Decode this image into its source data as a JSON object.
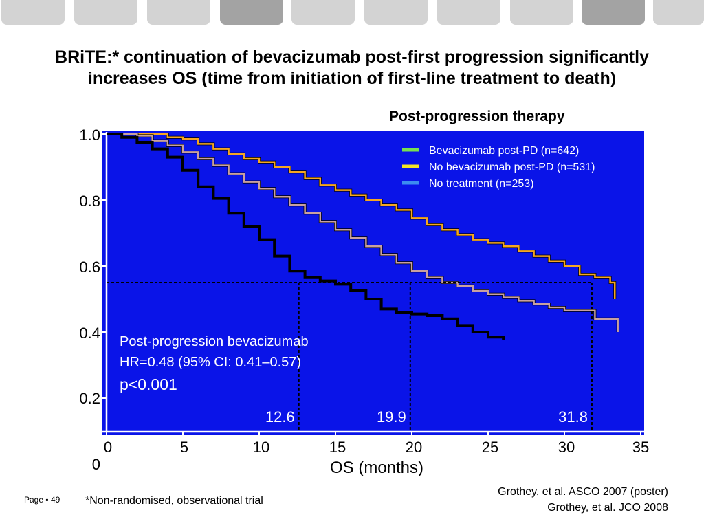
{
  "title_lines": [
    "BRiTE:* continuation of bevacizumab post-first progression significantly",
    "increases OS (time from initiation of first-line treatment to death)"
  ],
  "legend_title": "Post-progression therapy",
  "footnote": "*Non-randomised, observational trial",
  "page_label": "Page ▪ 49",
  "references": [
    "Grothey, et al. ASCO 2007 (poster)",
    "Grothey, et al. JCO 2008"
  ],
  "chart_data": {
    "type": "line",
    "xlabel": "OS (months)",
    "ylabel": "",
    "xlim": [
      0,
      35
    ],
    "ylim": [
      0,
      1.0
    ],
    "x_ticks": [
      "0",
      "5",
      "10",
      "15",
      "20",
      "25",
      "30",
      "35"
    ],
    "y_ticks": [
      "1.0",
      "0.8",
      "0.6",
      "0.4",
      "0.2",
      "0"
    ],
    "background_color": "#0a14e8",
    "legend_position": "top-right",
    "series": [
      {
        "name": "Bevacizumab post-PD (n=642)",
        "legend_color": "#78e050",
        "line_color": "#f5a623",
        "points": [
          [
            0,
            1.0
          ],
          [
            2,
            1.0
          ],
          [
            4,
            0.99
          ],
          [
            5,
            0.985
          ],
          [
            6,
            0.97
          ],
          [
            7,
            0.955
          ],
          [
            8,
            0.94
          ],
          [
            9,
            0.925
          ],
          [
            10,
            0.915
          ],
          [
            11,
            0.9
          ],
          [
            12,
            0.885
          ],
          [
            13,
            0.865
          ],
          [
            14,
            0.845
          ],
          [
            15,
            0.83
          ],
          [
            16,
            0.815
          ],
          [
            17,
            0.8
          ],
          [
            18,
            0.785
          ],
          [
            19,
            0.77
          ],
          [
            20,
            0.745
          ],
          [
            21,
            0.725
          ],
          [
            22,
            0.71
          ],
          [
            23,
            0.695
          ],
          [
            24,
            0.68
          ],
          [
            25,
            0.67
          ],
          [
            26,
            0.66
          ],
          [
            27,
            0.645
          ],
          [
            28,
            0.63
          ],
          [
            29,
            0.615
          ],
          [
            30,
            0.6
          ],
          [
            31,
            0.575
          ],
          [
            32,
            0.565
          ],
          [
            33,
            0.55
          ],
          [
            33.3,
            0.52
          ],
          [
            33.3,
            0.5
          ]
        ]
      },
      {
        "name": "No bevacizumab post-PD (n=531)",
        "legend_color": "#f5e626",
        "line_color": "#c8a0a0",
        "points": [
          [
            0,
            1.0
          ],
          [
            2,
            0.995
          ],
          [
            3,
            0.98
          ],
          [
            4,
            0.965
          ],
          [
            5,
            0.945
          ],
          [
            6,
            0.925
          ],
          [
            7,
            0.905
          ],
          [
            8,
            0.88
          ],
          [
            9,
            0.855
          ],
          [
            10,
            0.835
          ],
          [
            11,
            0.81
          ],
          [
            12,
            0.785
          ],
          [
            13,
            0.76
          ],
          [
            14,
            0.735
          ],
          [
            15,
            0.71
          ],
          [
            16,
            0.685
          ],
          [
            17,
            0.66
          ],
          [
            18,
            0.635
          ],
          [
            19,
            0.61
          ],
          [
            20,
            0.585
          ],
          [
            21,
            0.565
          ],
          [
            22,
            0.55
          ],
          [
            23,
            0.54
          ],
          [
            24,
            0.525
          ],
          [
            25,
            0.515
          ],
          [
            26,
            0.505
          ],
          [
            27,
            0.495
          ],
          [
            28,
            0.485
          ],
          [
            29,
            0.475
          ],
          [
            30,
            0.465
          ],
          [
            31,
            0.465
          ],
          [
            32,
            0.44
          ],
          [
            33.5,
            0.44
          ],
          [
            33.5,
            0.4
          ]
        ]
      },
      {
        "name": "No treatment (n=253)",
        "legend_color": "#3c8cf0",
        "line_color": "#000000",
        "points": [
          [
            0,
            1.0
          ],
          [
            1,
            0.99
          ],
          [
            2,
            0.975
          ],
          [
            3,
            0.955
          ],
          [
            4,
            0.93
          ],
          [
            5,
            0.89
          ],
          [
            6,
            0.84
          ],
          [
            7,
            0.805
          ],
          [
            8,
            0.76
          ],
          [
            9,
            0.72
          ],
          [
            10,
            0.68
          ],
          [
            11,
            0.63
          ],
          [
            12,
            0.585
          ],
          [
            13,
            0.565
          ],
          [
            14,
            0.555
          ],
          [
            15,
            0.545
          ],
          [
            16,
            0.525
          ],
          [
            17,
            0.5
          ],
          [
            18,
            0.47
          ],
          [
            19,
            0.46
          ],
          [
            20,
            0.455
          ],
          [
            21,
            0.45
          ],
          [
            22,
            0.44
          ],
          [
            23,
            0.42
          ],
          [
            24,
            0.4
          ],
          [
            25,
            0.385
          ],
          [
            26,
            0.375
          ]
        ]
      }
    ],
    "median_line_y": 0.55,
    "medians": [
      {
        "x": 12.6,
        "label": "12.6"
      },
      {
        "x": 19.9,
        "label": "19.9"
      },
      {
        "x": 31.8,
        "label": "31.8"
      }
    ],
    "annotation_lines": [
      "Post-progression bevacizumab",
      "HR=0.48 (95% CI: 0.41–0.57)",
      "p<0.001"
    ]
  }
}
